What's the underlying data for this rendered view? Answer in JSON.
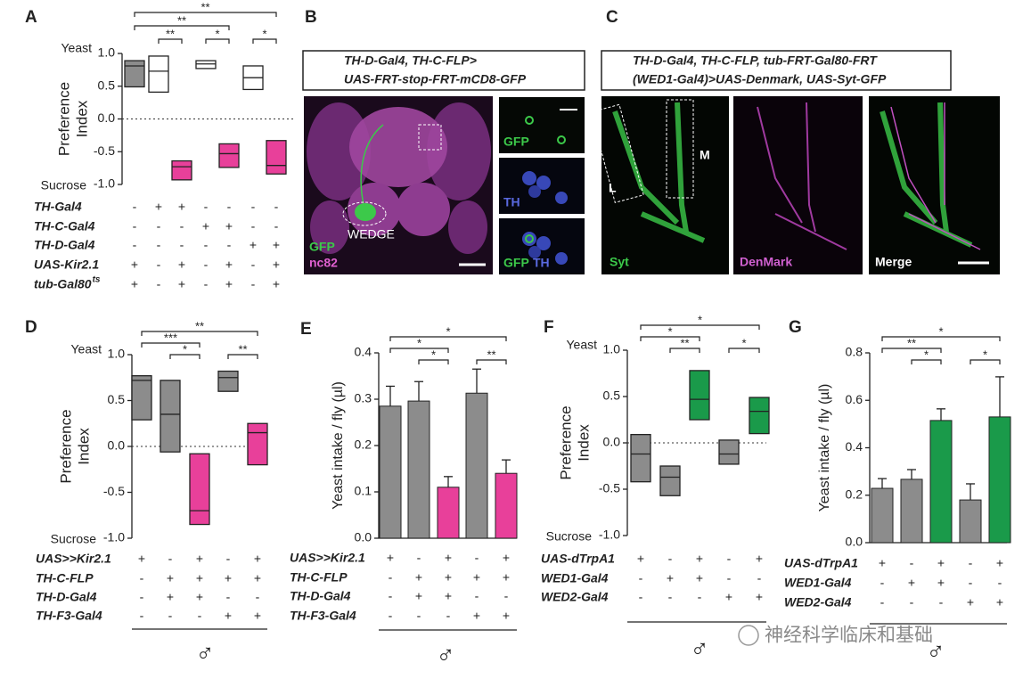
{
  "chart_data": [
    {
      "panel": "A",
      "type": "box",
      "y_label": [
        "Preference",
        "Index"
      ],
      "y_top_label": "Yeast",
      "y_bottom_label": "Sucrose",
      "ylim": [
        -1,
        1
      ],
      "yticks": [
        {
          "value": 1,
          "label": "1.0"
        },
        0.5,
        {
          "value": 0,
          "label": "0.0"
        },
        -0.5,
        {
          "value": -1,
          "label": "-1.0"
        }
      ],
      "boxes": [
        {
          "low": 0.49,
          "median": 0.81,
          "high": 0.89,
          "color": "#8c8c8c"
        },
        {
          "low": 0.41,
          "median": 0.73,
          "high": 0.96,
          "color": "#ffffff"
        },
        {
          "low": -0.93,
          "median": -0.73,
          "high": -0.64,
          "color": "#e8409a"
        },
        {
          "low": 0.77,
          "median": 0.84,
          "high": 0.89,
          "color": "#ffffff"
        },
        {
          "low": -0.74,
          "median": -0.53,
          "high": -0.38,
          "color": "#e8409a"
        },
        {
          "low": 0.45,
          "median": 0.63,
          "high": 0.81,
          "color": "#ffffff"
        },
        {
          "low": -0.84,
          "median": -0.71,
          "high": -0.33,
          "color": "#e8409a"
        }
      ],
      "significance": [
        {
          "from": 1,
          "to": 7,
          "label": "**"
        },
        {
          "from": 1,
          "to": 5,
          "label": "**"
        },
        {
          "from": 2,
          "to": 3,
          "label": "**"
        },
        {
          "from": 4,
          "to": 5,
          "label": "*"
        },
        {
          "from": 6,
          "to": 7,
          "label": "*"
        }
      ],
      "genotype": [
        {
          "label": "TH-Gal4",
          "marks": [
            "-",
            "+",
            "+",
            "-",
            "-",
            "-",
            "-"
          ]
        },
        {
          "label": "TH-C-Gal4",
          "marks": [
            "-",
            "-",
            "-",
            "+",
            "+",
            "-",
            "-"
          ]
        },
        {
          "label": "TH-D-Gal4",
          "marks": [
            "-",
            "-",
            "-",
            "-",
            "-",
            "+",
            "+"
          ]
        },
        {
          "label": "UAS-Kir2.1",
          "marks": [
            "+",
            "-",
            "+",
            "-",
            "+",
            "-",
            "+"
          ]
        },
        {
          "label": "tub-Gal80",
          "superscript": "ts",
          "marks": [
            "+",
            "-",
            "+",
            "-",
            "+",
            "-",
            "+"
          ]
        }
      ]
    },
    {
      "panel": "D",
      "type": "box",
      "y_label": [
        "Preference",
        "Index"
      ],
      "y_top_label": "Yeast",
      "y_bottom_label": "Sucrose",
      "ylim": [
        -1,
        1
      ],
      "yticks": [
        {
          "value": 1,
          "label": "1.0"
        },
        0.5,
        {
          "value": 0,
          "label": "0.0"
        },
        -0.5,
        {
          "value": -1,
          "label": "-1.0"
        }
      ],
      "boxes": [
        {
          "low": 0.29,
          "median": 0.72,
          "high": 0.77,
          "color": "#8c8c8c"
        },
        {
          "low": -0.06,
          "median": 0.35,
          "high": 0.72,
          "color": "#8c8c8c"
        },
        {
          "low": -0.85,
          "median": -0.7,
          "high": -0.08,
          "color": "#e8409a"
        },
        {
          "low": 0.6,
          "median": 0.75,
          "high": 0.82,
          "color": "#8c8c8c"
        },
        {
          "low": -0.2,
          "median": 0.15,
          "high": 0.25,
          "color": "#e8409a"
        }
      ],
      "significance": [
        {
          "from": 1,
          "to": 5,
          "label": "**"
        },
        {
          "from": 1,
          "to": 3,
          "label": "***"
        },
        {
          "from": 2,
          "to": 3,
          "label": "*"
        },
        {
          "from": 4,
          "to": 5,
          "label": "**"
        }
      ],
      "genotype": [
        {
          "label": "UAS>>Kir2.1",
          "marks": [
            "+",
            "-",
            "+",
            "-",
            "+"
          ]
        },
        {
          "label": "TH-C-FLP",
          "marks": [
            "-",
            "+",
            "+",
            "+",
            "+"
          ]
        },
        {
          "label": "TH-D-Gal4",
          "marks": [
            "-",
            "+",
            "+",
            "-",
            "-"
          ]
        },
        {
          "label": "TH-F3-Gal4",
          "marks": [
            "-",
            "-",
            "-",
            "+",
            "+"
          ]
        }
      ],
      "sex": "♂"
    },
    {
      "panel": "E",
      "type": "bar",
      "y_label": "Yeast intake / fly (µl)",
      "ylim": [
        0,
        0.4
      ],
      "yticks": [
        {
          "value": 0,
          "label": "0.0"
        },
        0.1,
        0.2,
        0.3,
        0.4
      ],
      "values": [
        0.285,
        0.296,
        0.11,
        0.313,
        0.14
      ],
      "errors": [
        0.043,
        0.042,
        0.023,
        0.052,
        0.029
      ],
      "colors": [
        "#8c8c8c",
        "#8c8c8c",
        "#e8409a",
        "#8c8c8c",
        "#e8409a"
      ],
      "significance": [
        {
          "from": 1,
          "to": 5,
          "label": "*"
        },
        {
          "from": 1,
          "to": 3,
          "label": "*"
        },
        {
          "from": 2,
          "to": 3,
          "label": "*"
        },
        {
          "from": 4,
          "to": 5,
          "label": "**"
        }
      ],
      "genotype": [
        {
          "label": "UAS>>Kir2.1",
          "marks": [
            "+",
            "-",
            "+",
            "-",
            "+"
          ]
        },
        {
          "label": "TH-C-FLP",
          "marks": [
            "-",
            "+",
            "+",
            "+",
            "+"
          ]
        },
        {
          "label": "TH-D-Gal4",
          "marks": [
            "-",
            "+",
            "+",
            "-",
            "-"
          ]
        },
        {
          "label": "TH-F3-Gal4",
          "marks": [
            "-",
            "-",
            "-",
            "+",
            "+"
          ]
        }
      ],
      "sex": "♂"
    },
    {
      "panel": "F",
      "type": "box",
      "y_label": [
        "Preference",
        "Index"
      ],
      "y_top_label": "Yeast",
      "y_bottom_label": "Sucrose",
      "ylim": [
        -1,
        1
      ],
      "yticks": [
        {
          "value": 1,
          "label": "1.0"
        },
        0.5,
        {
          "value": 0,
          "label": "0.0"
        },
        -0.5,
        {
          "value": -1,
          "label": "-1.0"
        }
      ],
      "boxes": [
        {
          "low": -0.42,
          "median": -0.12,
          "high": 0.09,
          "color": "#8c8c8c"
        },
        {
          "low": -0.57,
          "median": -0.37,
          "high": -0.25,
          "color": "#8c8c8c"
        },
        {
          "low": 0.25,
          "median": 0.47,
          "high": 0.78,
          "color": "#1a9a4a"
        },
        {
          "low": -0.23,
          "median": -0.12,
          "high": 0.03,
          "color": "#8c8c8c"
        },
        {
          "low": 0.1,
          "median": 0.34,
          "high": 0.49,
          "color": "#1a9a4a"
        }
      ],
      "significance": [
        {
          "from": 1,
          "to": 5,
          "label": "*"
        },
        {
          "from": 1,
          "to": 3,
          "label": "*"
        },
        {
          "from": 2,
          "to": 3,
          "label": "**"
        },
        {
          "from": 4,
          "to": 5,
          "label": "*"
        }
      ],
      "genotype": [
        {
          "label": "UAS-dTrpA1",
          "marks": [
            "+",
            "-",
            "+",
            "-",
            "+"
          ]
        },
        {
          "label": "WED1-Gal4",
          "marks": [
            "-",
            "+",
            "+",
            "-",
            "-"
          ]
        },
        {
          "label": "WED2-Gal4",
          "marks": [
            "-",
            "-",
            "-",
            "+",
            "+"
          ]
        }
      ],
      "sex": "♂"
    },
    {
      "panel": "G",
      "type": "bar",
      "y_label": "Yeast intake / fly (µl)",
      "ylim": [
        0,
        0.8
      ],
      "yticks": [
        {
          "value": 0,
          "label": "0.0"
        },
        0.2,
        0.4,
        0.6,
        0.8
      ],
      "values": [
        0.229,
        0.267,
        0.515,
        0.18,
        0.53
      ],
      "errors": [
        0.041,
        0.041,
        0.049,
        0.068,
        0.169
      ],
      "colors": [
        "#8c8c8c",
        "#8c8c8c",
        "#1a9a4a",
        "#8c8c8c",
        "#1a9a4a"
      ],
      "significance": [
        {
          "from": 1,
          "to": 5,
          "label": "*"
        },
        {
          "from": 1,
          "to": 3,
          "label": "**"
        },
        {
          "from": 2,
          "to": 3,
          "label": "*"
        },
        {
          "from": 4,
          "to": 5,
          "label": "*"
        }
      ],
      "genotype": [
        {
          "label": "UAS-dTrpA1",
          "marks": [
            "+",
            "-",
            "+",
            "-",
            "+"
          ]
        },
        {
          "label": "WED1-Gal4",
          "marks": [
            "-",
            "+",
            "+",
            "-",
            "-"
          ]
        },
        {
          "label": "WED2-Gal4",
          "marks": [
            "-",
            "-",
            "-",
            "+",
            "+"
          ]
        }
      ],
      "sex": "♂"
    }
  ],
  "images": [
    {
      "letter": "B",
      "title": [
        "TH-D-Gal4, TH-C-FLP>",
        "UAS-FRT-stop-FRT-mCD8-GFP"
      ],
      "labels": [
        "GFP",
        "nc82",
        "WEDGE",
        "GFP",
        "TH",
        "GFP",
        "TH"
      ]
    },
    {
      "letter": "C",
      "title": [
        "TH-D-Gal4, TH-C-FLP, tub-FRT-Gal80-FRT",
        "(WED1-Gal4)>UAS-Denmark, UAS-Syt-GFP"
      ],
      "labels": [
        "L",
        "M",
        "Syt",
        "DenMark",
        "Merge"
      ]
    }
  ],
  "watermark": "神经科学临床和基础"
}
